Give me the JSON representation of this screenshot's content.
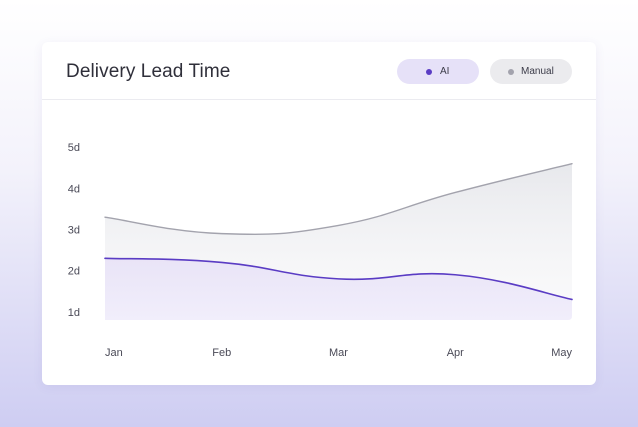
{
  "card": {
    "title": "Delivery Lead Time"
  },
  "legend": {
    "ai": {
      "label": "AI",
      "color": "#5a3cc4"
    },
    "manual": {
      "label": "Manual",
      "color": "#a3a3ad"
    }
  },
  "chart_data": {
    "type": "area",
    "title": "Delivery Lead Time",
    "xlabel": "",
    "ylabel": "",
    "categories": [
      "Jan",
      "Feb",
      "Mar",
      "Apr",
      "May"
    ],
    "y_ticks": [
      "5d",
      "4d",
      "3d",
      "2d",
      "1d"
    ],
    "y_tick_values": [
      5,
      4,
      3,
      2,
      1
    ],
    "ylim": [
      0.8,
      5.2
    ],
    "legend_position": "top-right",
    "series": [
      {
        "name": "Manual",
        "color": "#a3a3ad",
        "values": [
          3.3,
          2.9,
          3.1,
          3.9,
          4.6
        ]
      },
      {
        "name": "AI",
        "color": "#5a3cc4",
        "values": [
          2.3,
          2.2,
          1.8,
          1.9,
          1.3
        ]
      }
    ]
  }
}
